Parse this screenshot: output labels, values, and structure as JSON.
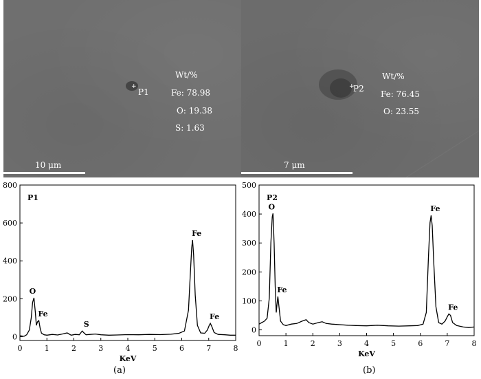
{
  "panels": [
    {
      "id": "a",
      "image": {
        "point_label": "P1",
        "table_title": "Wt/%",
        "rows": [
          "Fe: 78.98",
          "O: 19.38",
          "S: 1.63"
        ],
        "scale_label": "10 μm"
      },
      "caption": "(a)"
    },
    {
      "id": "b",
      "image": {
        "point_label": "P2",
        "table_title": "Wt/%",
        "rows": [
          "Fe: 76.45",
          "O: 23.55"
        ],
        "scale_label": "7 μm"
      },
      "caption": "(b)"
    }
  ],
  "chart_data": [
    {
      "type": "line",
      "title": "",
      "annotation": "P1",
      "xlabel": "KeV",
      "ylabel": "",
      "xlim": [
        0,
        8
      ],
      "ylim": [
        -20,
        800
      ],
      "xticks": [
        0,
        1,
        2,
        3,
        4,
        5,
        6,
        7,
        8
      ],
      "yticks": [
        0,
        200,
        400,
        600,
        800
      ],
      "peaks": [
        {
          "label": "O",
          "x": 0.52,
          "y": 205
        },
        {
          "label": "Fe",
          "x": 0.7,
          "y": 85
        },
        {
          "label": "S",
          "x": 2.31,
          "y": 30
        },
        {
          "label": "Fe",
          "x": 6.4,
          "y": 510
        },
        {
          "label": "Fe",
          "x": 7.06,
          "y": 70
        }
      ],
      "series": [
        {
          "x": [
            0,
            0.15,
            0.25,
            0.35,
            0.42,
            0.47,
            0.52,
            0.57,
            0.61,
            0.65,
            0.7,
            0.75,
            0.8,
            0.9,
            1.0,
            1.2,
            1.4,
            1.6,
            1.75,
            1.9,
            2.05,
            2.2,
            2.28,
            2.31,
            2.36,
            2.45,
            2.6,
            2.8,
            3.0,
            3.3,
            3.6,
            4.0,
            4.4,
            4.8,
            5.2,
            5.6,
            5.9,
            6.1,
            6.25,
            6.32,
            6.37,
            6.4,
            6.44,
            6.5,
            6.58,
            6.7,
            6.85,
            6.95,
            7.02,
            7.06,
            7.11,
            7.2,
            7.35,
            7.6,
            7.8,
            8.0
          ],
          "y": [
            5,
            2,
            10,
            35,
            100,
            180,
            205,
            130,
            60,
            78,
            85,
            45,
            18,
            10,
            8,
            12,
            9,
            15,
            20,
            8,
            12,
            10,
            25,
            30,
            22,
            10,
            12,
            14,
            10,
            8,
            9,
            11,
            10,
            12,
            11,
            13,
            18,
            30,
            140,
            340,
            470,
            510,
            430,
            220,
            60,
            20,
            18,
            35,
            60,
            70,
            55,
            22,
            12,
            10,
            8,
            8
          ]
        }
      ]
    },
    {
      "type": "line",
      "title": "",
      "annotation": "P2",
      "xlabel": "KeV",
      "ylabel": "",
      "xlim": [
        0,
        8
      ],
      "ylim": [
        -20,
        500
      ],
      "xticks": [
        0,
        1,
        2,
        3,
        4,
        5,
        6,
        7,
        8
      ],
      "yticks": [
        0,
        100,
        200,
        300,
        400,
        500
      ],
      "peaks": [
        {
          "label": "O",
          "x": 0.52,
          "y": 402
        },
        {
          "label": "Fe",
          "x": 0.7,
          "y": 115
        },
        {
          "label": "Fe",
          "x": 6.4,
          "y": 395
        },
        {
          "label": "Fe",
          "x": 7.06,
          "y": 55
        }
      ],
      "series": [
        {
          "x": [
            0,
            0.1,
            0.2,
            0.3,
            0.38,
            0.44,
            0.49,
            0.52,
            0.56,
            0.6,
            0.64,
            0.68,
            0.7,
            0.74,
            0.8,
            0.9,
            1.0,
            1.2,
            1.4,
            1.6,
            1.75,
            1.85,
            2.0,
            2.2,
            2.35,
            2.5,
            2.7,
            3.0,
            3.3,
            3.6,
            4.0,
            4.4,
            4.8,
            5.2,
            5.6,
            5.9,
            6.1,
            6.22,
            6.3,
            6.36,
            6.4,
            6.44,
            6.5,
            6.58,
            6.68,
            6.8,
            6.92,
            7.0,
            7.06,
            7.12,
            7.2,
            7.35,
            7.6,
            7.8,
            8.0
          ],
          "y": [
            20,
            25,
            30,
            40,
            110,
            300,
            390,
            402,
            300,
            150,
            60,
            100,
            115,
            80,
            30,
            18,
            15,
            20,
            22,
            30,
            35,
            25,
            20,
            25,
            28,
            22,
            20,
            18,
            16,
            15,
            14,
            16,
            14,
            13,
            14,
            15,
            20,
            60,
            250,
            370,
            395,
            360,
            230,
            80,
            25,
            20,
            30,
            45,
            55,
            50,
            25,
            15,
            10,
            8,
            10
          ]
        }
      ]
    }
  ]
}
